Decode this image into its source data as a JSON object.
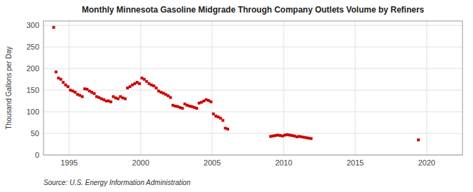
{
  "chart_data": {
    "type": "scatter",
    "title": "Monthly Minnesota Gasoline Midgrade Through Company Outlets Volume by Refiners",
    "ylabel": "Thousand Gallons per Day",
    "source": "Source: U.S. Energy Information Administration",
    "color": "#cc0000",
    "marker": "square",
    "grid": true,
    "xlim": [
      1993.2,
      2022.5
    ],
    "ylim": [
      0,
      310
    ],
    "xticks": [
      1995,
      2000,
      2005,
      2010,
      2015,
      2020
    ],
    "yticks": [
      0,
      50,
      100,
      150,
      200,
      250,
      300
    ],
    "x": [
      1993.917,
      1994.083,
      1994.25,
      1994.417,
      1994.583,
      1994.75,
      1994.917,
      1995.083,
      1995.25,
      1995.417,
      1995.583,
      1995.75,
      1995.917,
      1996.083,
      1996.25,
      1996.417,
      1996.583,
      1996.75,
      1996.917,
      1997.083,
      1997.25,
      1997.417,
      1997.583,
      1997.75,
      1997.917,
      1998.083,
      1998.25,
      1998.417,
      1998.583,
      1998.75,
      1998.917,
      1999.083,
      1999.25,
      1999.417,
      1999.583,
      1999.75,
      1999.917,
      2000.083,
      2000.25,
      2000.417,
      2000.583,
      2000.75,
      2000.917,
      2001.083,
      2001.25,
      2001.417,
      2001.583,
      2001.75,
      2001.917,
      2002.083,
      2002.25,
      2002.417,
      2002.583,
      2002.75,
      2002.917,
      2003.083,
      2003.25,
      2003.417,
      2003.583,
      2003.75,
      2003.917,
      2004.083,
      2004.25,
      2004.417,
      2004.583,
      2004.75,
      2004.917,
      2005.083,
      2005.25,
      2005.417,
      2005.583,
      2005.75,
      2005.917,
      2006.083,
      2009.083,
      2009.25,
      2009.417,
      2009.583,
      2009.75,
      2009.917,
      2010.083,
      2010.25,
      2010.417,
      2010.583,
      2010.75,
      2010.917,
      2011.083,
      2011.25,
      2011.417,
      2011.583,
      2011.75,
      2011.917,
      2019.417
    ],
    "values": [
      295,
      192,
      178,
      175,
      168,
      162,
      158,
      150,
      148,
      145,
      140,
      138,
      135,
      153,
      152,
      148,
      145,
      142,
      135,
      133,
      130,
      128,
      125,
      125,
      123,
      135,
      132,
      130,
      135,
      132,
      130,
      155,
      158,
      162,
      165,
      168,
      165,
      178,
      175,
      170,
      165,
      162,
      160,
      155,
      148,
      145,
      143,
      140,
      137,
      133,
      115,
      113,
      112,
      110,
      108,
      118,
      115,
      113,
      112,
      110,
      108,
      120,
      122,
      125,
      128,
      126,
      123,
      95,
      90,
      88,
      85,
      80,
      62,
      60,
      43,
      44,
      45,
      46,
      45,
      44,
      46,
      47,
      46,
      45,
      44,
      42,
      43,
      42,
      41,
      40,
      39,
      38,
      35
    ]
  }
}
